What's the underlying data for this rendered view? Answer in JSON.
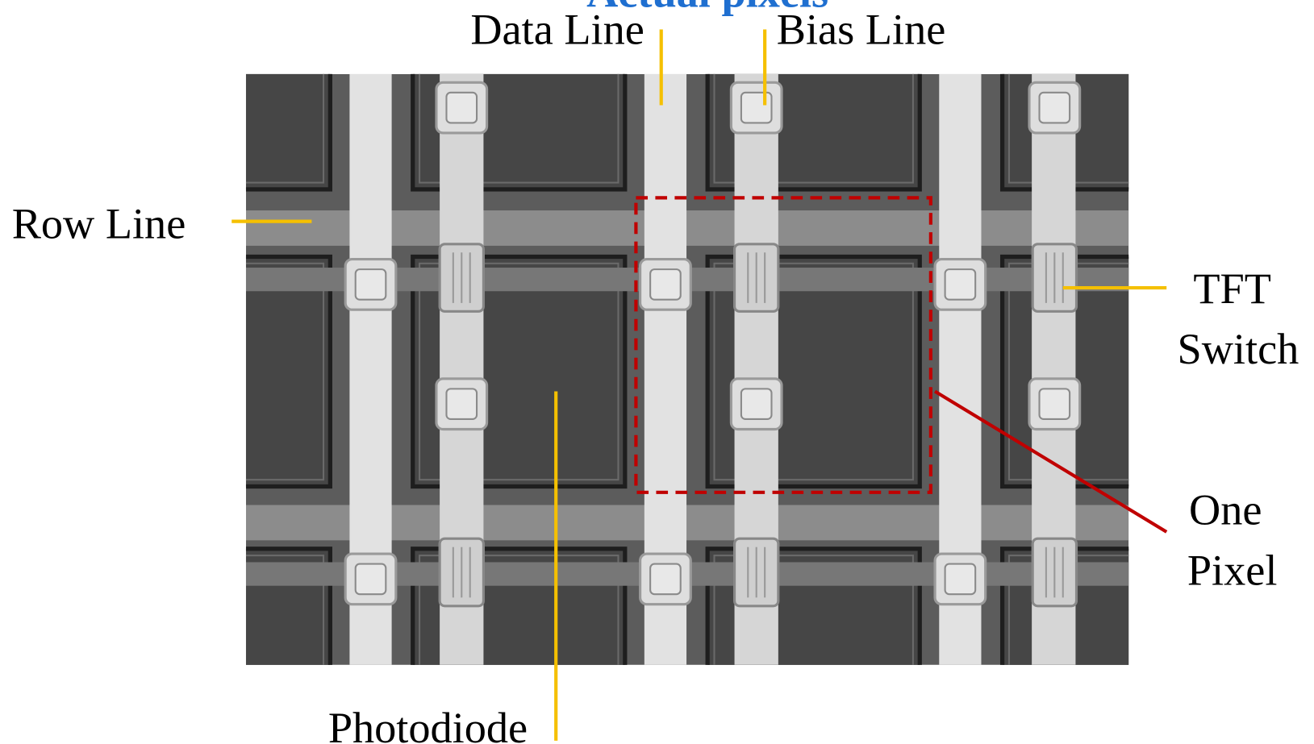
{
  "title": "Actual pixels",
  "labels": {
    "data_line": "Data Line",
    "bias_line": "Bias Line",
    "row_line": "Row Line",
    "tft_switch": [
      "TFT",
      "Switch"
    ],
    "one_pixel": [
      "One",
      "Pixel"
    ],
    "photodiode": "Photodiode"
  }
}
